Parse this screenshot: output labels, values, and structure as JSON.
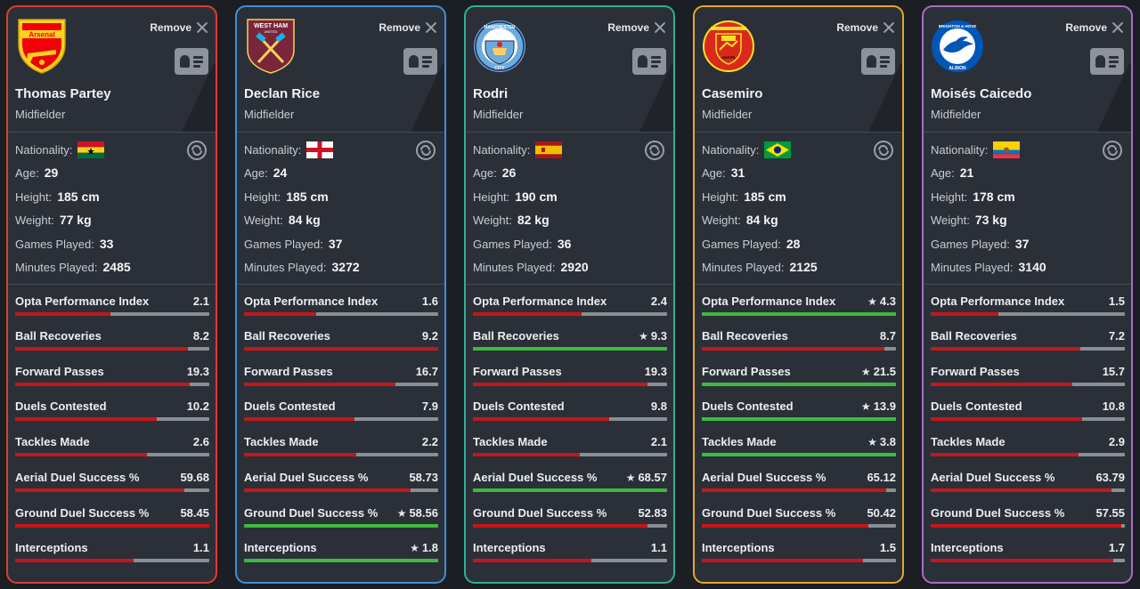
{
  "remove_label": "Remove",
  "labels": {
    "nationality": "Nationality:",
    "age": "Age:",
    "height": "Height:",
    "weight": "Weight:",
    "games": "Games Played:",
    "minutes": "Minutes Played:"
  },
  "colors": {
    "bar_bg": "#8a8f96",
    "bar_red": "#c4161c",
    "bar_green": "#3dbb3d",
    "card_bg": "#2b3038"
  },
  "stat_labels": [
    "Opta Performance Index",
    "Ball Recoveries",
    "Forward Passes",
    "Duels Contested",
    "Tackles Made",
    "Aerial Duel Success %",
    "Ground Duel Success %",
    "Interceptions"
  ],
  "players": [
    {
      "name": "Thomas Partey",
      "position": "Midfielder",
      "club_icon": "arsenal-crest-icon",
      "border": "#e0393a",
      "nationality_icon": "ghana-flag-icon",
      "age": "29",
      "height": "185 cm",
      "weight": "77 kg",
      "games": "33",
      "minutes": "2485",
      "stats": [
        {
          "value": "2.1",
          "best": false,
          "fill": 0.49
        },
        {
          "value": "8.2",
          "best": false,
          "fill": 0.89
        },
        {
          "value": "19.3",
          "best": false,
          "fill": 0.9
        },
        {
          "value": "10.2",
          "best": false,
          "fill": 0.73
        },
        {
          "value": "2.6",
          "best": false,
          "fill": 0.68
        },
        {
          "value": "59.68",
          "best": false,
          "fill": 0.87
        },
        {
          "value": "58.45",
          "best": false,
          "fill": 1.0
        },
        {
          "value": "1.1",
          "best": false,
          "fill": 0.61
        }
      ]
    },
    {
      "name": "Declan Rice",
      "position": "Midfielder",
      "club_icon": "west-ham-crest-icon",
      "border": "#3d8fdc",
      "nationality_icon": "england-flag-icon",
      "age": "24",
      "height": "185 cm",
      "weight": "84 kg",
      "games": "37",
      "minutes": "3272",
      "stats": [
        {
          "value": "1.6",
          "best": false,
          "fill": 0.37
        },
        {
          "value": "9.2",
          "best": false,
          "fill": 1.0
        },
        {
          "value": "16.7",
          "best": false,
          "fill": 0.78
        },
        {
          "value": "7.9",
          "best": false,
          "fill": 0.57
        },
        {
          "value": "2.2",
          "best": false,
          "fill": 0.58
        },
        {
          "value": "58.73",
          "best": false,
          "fill": 0.86
        },
        {
          "value": "58.56",
          "best": true,
          "fill": 1.0
        },
        {
          "value": "1.8",
          "best": true,
          "fill": 1.0
        }
      ]
    },
    {
      "name": "Rodri",
      "position": "Midfielder",
      "club_icon": "manchester-city-crest-icon",
      "border": "#2db096",
      "nationality_icon": "spain-flag-icon",
      "age": "26",
      "height": "190 cm",
      "weight": "82 kg",
      "games": "36",
      "minutes": "2920",
      "stats": [
        {
          "value": "2.4",
          "best": false,
          "fill": 0.56
        },
        {
          "value": "9.3",
          "best": true,
          "fill": 1.0
        },
        {
          "value": "19.3",
          "best": false,
          "fill": 0.9
        },
        {
          "value": "9.8",
          "best": false,
          "fill": 0.7
        },
        {
          "value": "2.1",
          "best": false,
          "fill": 0.55
        },
        {
          "value": "68.57",
          "best": true,
          "fill": 1.0
        },
        {
          "value": "52.83",
          "best": false,
          "fill": 0.9
        },
        {
          "value": "1.1",
          "best": false,
          "fill": 0.61
        }
      ]
    },
    {
      "name": "Casemiro",
      "position": "Midfielder",
      "club_icon": "manchester-united-crest-icon",
      "border": "#e8a52b",
      "nationality_icon": "brazil-flag-icon",
      "age": "31",
      "height": "185 cm",
      "weight": "84 kg",
      "games": "28",
      "minutes": "2125",
      "stats": [
        {
          "value": "4.3",
          "best": true,
          "fill": 1.0
        },
        {
          "value": "8.7",
          "best": false,
          "fill": 0.94
        },
        {
          "value": "21.5",
          "best": true,
          "fill": 1.0
        },
        {
          "value": "13.9",
          "best": true,
          "fill": 1.0
        },
        {
          "value": "3.8",
          "best": true,
          "fill": 1.0
        },
        {
          "value": "65.12",
          "best": false,
          "fill": 0.95
        },
        {
          "value": "50.42",
          "best": false,
          "fill": 0.86
        },
        {
          "value": "1.5",
          "best": false,
          "fill": 0.83
        }
      ]
    },
    {
      "name": "Moisés Caicedo",
      "position": "Midfielder",
      "club_icon": "brighton-crest-icon",
      "border": "#a86cc1",
      "nationality_icon": "ecuador-flag-icon",
      "age": "21",
      "height": "178 cm",
      "weight": "73 kg",
      "games": "37",
      "minutes": "3140",
      "stats": [
        {
          "value": "1.5",
          "best": false,
          "fill": 0.35
        },
        {
          "value": "7.2",
          "best": false,
          "fill": 0.77
        },
        {
          "value": "15.7",
          "best": false,
          "fill": 0.73
        },
        {
          "value": "10.8",
          "best": false,
          "fill": 0.78
        },
        {
          "value": "2.9",
          "best": false,
          "fill": 0.76
        },
        {
          "value": "63.79",
          "best": false,
          "fill": 0.93
        },
        {
          "value": "57.55",
          "best": false,
          "fill": 0.98
        },
        {
          "value": "1.7",
          "best": false,
          "fill": 0.94
        }
      ]
    }
  ]
}
